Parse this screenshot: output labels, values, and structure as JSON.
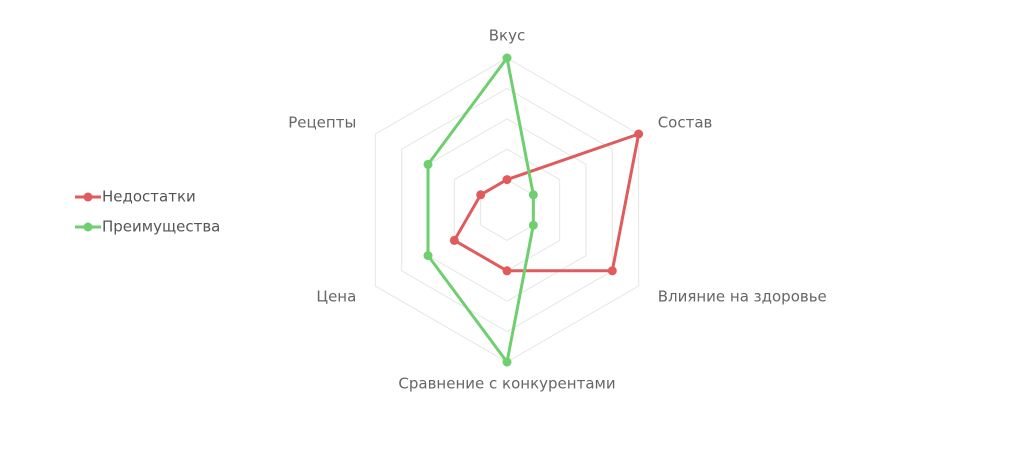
{
  "chart_data": {
    "type": "radar",
    "axes": [
      "Вкус",
      "Состав",
      "Влияние на здоровье",
      "Сравнение с конкурентами",
      "Цена",
      "Рецепты"
    ],
    "rlim": [
      0,
      5
    ],
    "grid_levels": 5,
    "grid": true,
    "legend_position": "left",
    "series": [
      {
        "name": "Недостатки",
        "values": [
          1,
          5,
          4,
          2,
          2,
          1
        ],
        "color": "#e05c5c"
      },
      {
        "name": "Преимущества",
        "values": [
          5,
          1,
          1,
          5,
          3,
          3
        ],
        "color": "#6fcf6f"
      }
    ]
  }
}
